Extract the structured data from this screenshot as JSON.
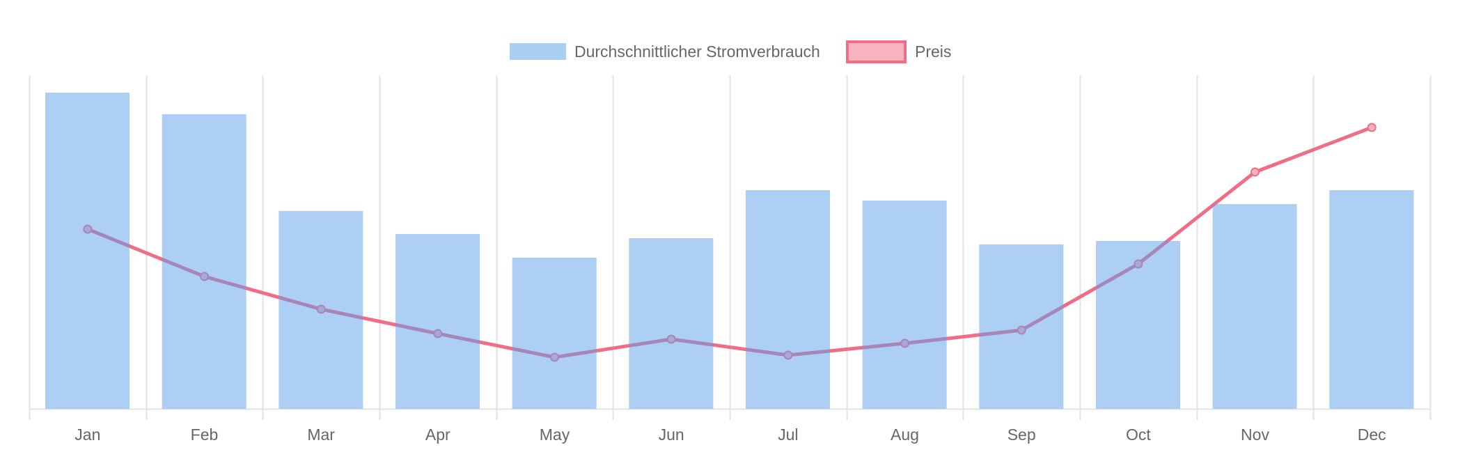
{
  "chart_data": {
    "type": "bar",
    "title": "",
    "xlabel": "",
    "ylabel": "",
    "grid": {
      "vertical": true,
      "horizontal": false
    },
    "legend_position": "top",
    "categories": [
      "Jan",
      "Feb",
      "Mar",
      "Apr",
      "May",
      "Jun",
      "Jul",
      "Aug",
      "Sep",
      "Oct",
      "Nov",
      "Dec"
    ],
    "ylim": [
      0,
      479
    ],
    "series": [
      {
        "name": "Durchschnittlicher Stromverbrauch",
        "type": "bar",
        "color": "#59a0e8",
        "opacity": 0.5,
        "values": [
          454,
          423,
          284,
          251,
          217,
          245,
          314,
          299,
          236,
          241,
          294,
          314
        ]
      },
      {
        "name": "Preis",
        "type": "line",
        "color": "#f06d85",
        "point_fill": "#f7b3c0",
        "values": [
          258,
          190,
          143,
          108,
          74,
          100,
          77,
          94,
          113,
          208,
          340,
          404
        ]
      }
    ]
  },
  "legend": {
    "items": [
      {
        "label": "Durchschnittlicher Stromverbrauch",
        "swatch": "bar",
        "color": "#abcff2"
      },
      {
        "label": "Preis",
        "swatch": "line",
        "color": "#f06d85",
        "fill": "#f7b3c0"
      }
    ]
  }
}
